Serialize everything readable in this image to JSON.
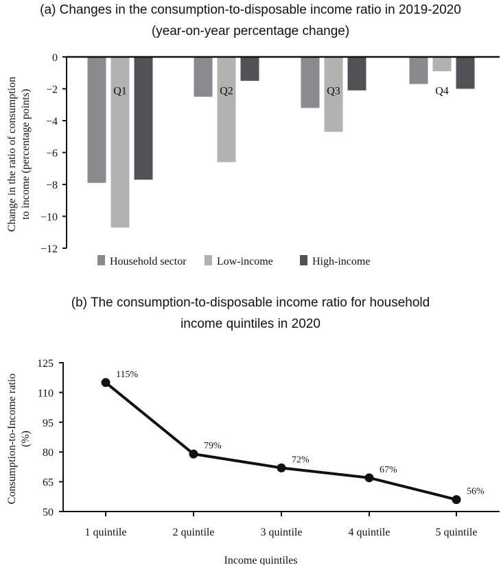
{
  "chart_data": [
    {
      "type": "bar",
      "title": [
        "(a) Changes in the consumption-to-disposable income ratio in 2019-2020",
        "(year-on-year percentage change)"
      ],
      "ylabel": [
        "Change in the ratio of consumption",
        "to income (percentage points)"
      ],
      "xlabel": "",
      "categories": [
        "Q1",
        "Q2",
        "Q3",
        "Q4"
      ],
      "ylim": [
        -12,
        0
      ],
      "yticks": [
        "0",
        "−2",
        "−4",
        "−6",
        "−8",
        "−10",
        "−12"
      ],
      "ytick_values": [
        0,
        -2,
        -4,
        -6,
        -8,
        -10,
        -12
      ],
      "legend_position": "bottom",
      "series": [
        {
          "name": "Household sector",
          "color": "#8a898d",
          "values": [
            -7.9,
            -2.5,
            -3.2,
            -1.7
          ]
        },
        {
          "name": "Low-income",
          "color": "#b3b2b1",
          "values": [
            -10.7,
            -6.6,
            -4.7,
            -0.9
          ]
        },
        {
          "name": "High-income",
          "color": "#525155",
          "values": [
            -7.7,
            -1.5,
            -2.1,
            -2.0
          ]
        }
      ]
    },
    {
      "type": "line",
      "title": [
        "(b) The consumption-to-disposable income ratio for household",
        "income quintiles in 2020"
      ],
      "ylabel": [
        "Consumption-to-Income ratio",
        "(%)"
      ],
      "xlabel": "Income quintiles",
      "categories": [
        "1 quintile",
        "2 quintile",
        "3 quintile",
        "4 quintile",
        "5 quintile"
      ],
      "ylim": [
        50,
        125
      ],
      "yticks": [
        "125",
        "110",
        "95",
        "80",
        "65",
        "50"
      ],
      "ytick_values": [
        125,
        110,
        95,
        80,
        65,
        50
      ],
      "values": [
        115,
        79,
        72,
        67,
        56
      ],
      "data_labels": [
        "115%",
        "79%",
        "72%",
        "67%",
        "56%"
      ],
      "color": "#111111"
    }
  ]
}
